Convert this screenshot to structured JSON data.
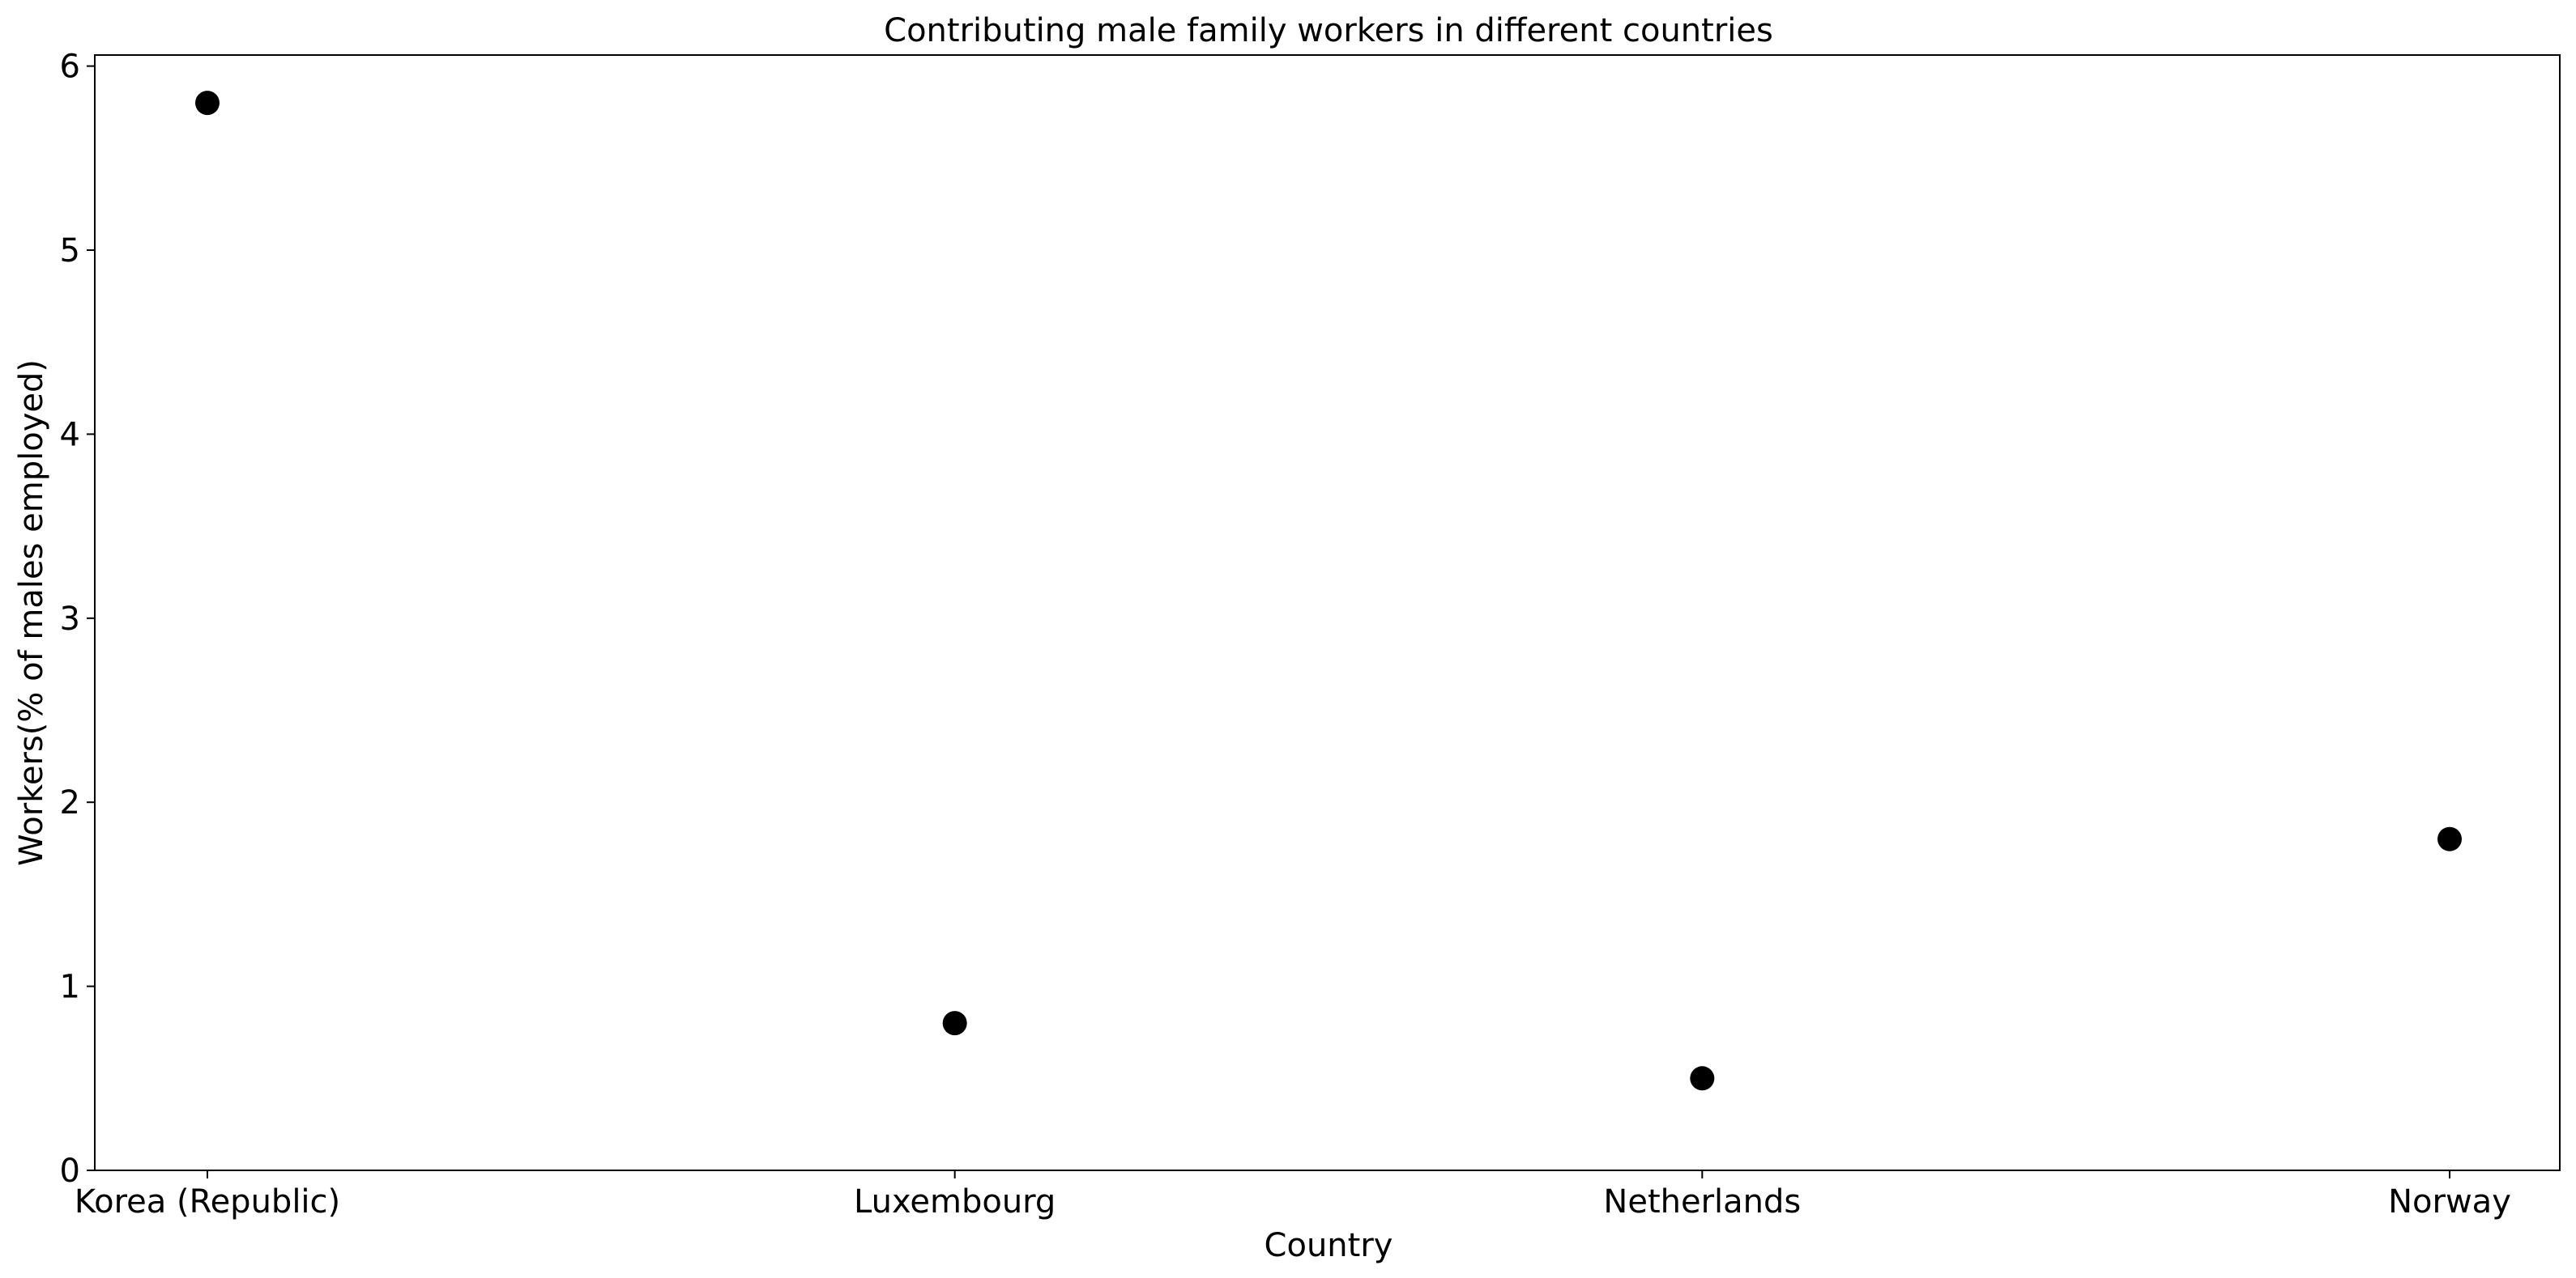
{
  "chart_data": {
    "type": "scatter",
    "title": "Contributing male family workers in different countries",
    "xlabel": "Country",
    "ylabel": "Workers(% of males employed)",
    "categories": [
      "Korea (Republic)",
      "Luxembourg",
      "Netherlands",
      "Norway"
    ],
    "series": [
      {
        "values": [
          5.8,
          0.8,
          0.5,
          1.8
        ],
        "color": "#000000"
      }
    ],
    "ylim": [
      0,
      6.06
    ],
    "yticks": [
      0,
      1,
      2,
      3,
      4,
      5,
      6
    ],
    "grid": false,
    "legend": false
  }
}
